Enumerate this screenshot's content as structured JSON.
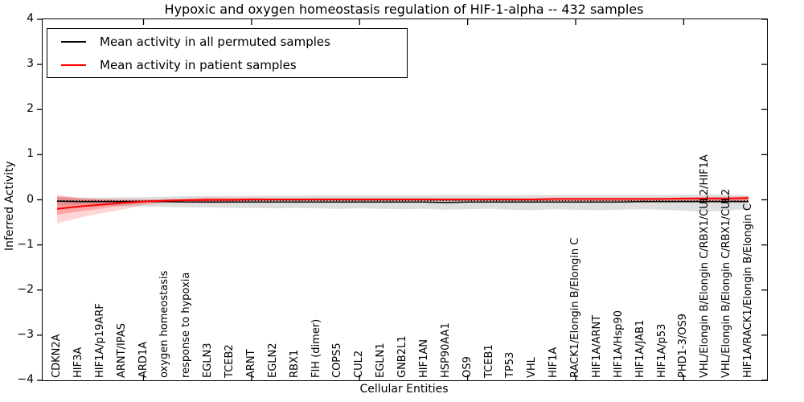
{
  "chart_data": {
    "type": "line",
    "title": "Hypoxic and oxygen homeostasis regulation of HIF-1-alpha -- 432 samples",
    "xlabel": "Cellular Entities",
    "ylabel": "Inferred Activity",
    "ylim": [
      -4,
      4
    ],
    "yticks": [
      4,
      3,
      2,
      1,
      0,
      -1,
      -2,
      -3,
      -4
    ],
    "ytick_labels": [
      "4",
      "3",
      "2",
      "1",
      "0",
      "−1",
      "−2",
      "−3",
      "−4"
    ],
    "xtick_major_positions": [
      5,
      10,
      15,
      20,
      25,
      30
    ],
    "grid": false,
    "legend_position": "upper left",
    "categories": [
      "CDKN2A",
      "HIF3A",
      "HIF1A/p19ARF",
      "ARNT/IPAS",
      "ARD1A",
      "oxygen homeostasis",
      "response to hypoxia",
      "EGLN3",
      "TCEB2",
      "ARNT",
      "EGLN2",
      "RBX1",
      "FIH (dimer)",
      "COPS5",
      "CUL2",
      "EGLN1",
      "GNB2L1",
      "HIF1AN",
      "HSP90AA1",
      "OS9",
      "TCEB1",
      "TP53",
      "VHL",
      "HIF1A",
      "RACK1/Elongin B/Elongin C",
      "HIF1A/ARNT",
      "HIF1A/Hsp90",
      "HIF1A/JAB1",
      "HIF1A/p53",
      "PHD1-3/OS9",
      "VHL/Elongin B/Elongin C/RBX1/CUL2/HIF1A",
      "VHL/Elongin B/Elongin C/RBX1/CUL2",
      "HIF1A/RACK1/Elongin B/Elongin C"
    ],
    "series": [
      {
        "name": "Mean activity in all permuted samples",
        "color": "#000000",
        "line_width": 1.4,
        "values": [
          -0.03,
          -0.04,
          -0.04,
          -0.04,
          -0.04,
          -0.04,
          -0.05,
          -0.05,
          -0.05,
          -0.05,
          -0.05,
          -0.05,
          -0.05,
          -0.05,
          -0.05,
          -0.05,
          -0.05,
          -0.05,
          -0.06,
          -0.05,
          -0.05,
          -0.05,
          -0.05,
          -0.05,
          -0.05,
          -0.05,
          -0.05,
          -0.04,
          -0.04,
          -0.04,
          -0.04,
          -0.04,
          -0.04
        ]
      },
      {
        "name": "Mean activity in patient samples",
        "color": "#ff0000",
        "line_width": 2,
        "values": [
          -0.2,
          -0.15,
          -0.11,
          -0.07,
          -0.04,
          -0.02,
          -0.01,
          0.0,
          0.0,
          0.01,
          0.01,
          0.01,
          0.01,
          0.01,
          0.01,
          0.01,
          0.01,
          0.01,
          0.01,
          0.01,
          0.01,
          0.01,
          0.01,
          0.02,
          0.02,
          0.02,
          0.02,
          0.02,
          0.02,
          0.03,
          0.03,
          0.03,
          0.04
        ]
      }
    ],
    "bands": [
      {
        "name": "permuted-samples-std",
        "color": "rgba(0,0,0,0.13)",
        "upper": [
          0.06,
          0.05,
          0.05,
          0.06,
          0.06,
          0.07,
          0.08,
          0.08,
          0.08,
          0.09,
          0.09,
          0.09,
          0.1,
          0.1,
          0.1,
          0.1,
          0.1,
          0.1,
          0.11,
          0.11,
          0.1,
          0.1,
          0.11,
          0.1,
          0.1,
          0.1,
          0.1,
          0.1,
          0.11,
          0.11,
          0.12,
          0.11,
          0.1
        ],
        "lower": [
          -0.13,
          -0.12,
          -0.13,
          -0.14,
          -0.15,
          -0.16,
          -0.17,
          -0.17,
          -0.18,
          -0.18,
          -0.19,
          -0.18,
          -0.19,
          -0.2,
          -0.19,
          -0.2,
          -0.21,
          -0.2,
          -0.22,
          -0.21,
          -0.2,
          -0.22,
          -0.23,
          -0.21,
          -0.22,
          -0.23,
          -0.22,
          -0.21,
          -0.22,
          -0.24,
          -0.26,
          -0.24,
          -0.2
        ]
      },
      {
        "name": "patient-samples-std-outer",
        "color": "rgba(255,0,0,0.16)",
        "upper": [
          0.11,
          0.05,
          0.02,
          0.01,
          0.01,
          0.02,
          0.03,
          0.05,
          0.04,
          0.04,
          0.03,
          0.03,
          0.03,
          0.03,
          0.03,
          0.03,
          0.03,
          0.03,
          0.03,
          0.03,
          0.03,
          0.03,
          0.03,
          0.04,
          0.04,
          0.04,
          0.04,
          0.04,
          0.04,
          0.05,
          0.07,
          0.07,
          0.08
        ],
        "lower": [
          -0.52,
          -0.4,
          -0.3,
          -0.22,
          -0.12,
          -0.07,
          -0.06,
          -0.08,
          -0.07,
          -0.05,
          -0.04,
          -0.04,
          -0.04,
          -0.04,
          -0.04,
          -0.04,
          -0.04,
          -0.04,
          -0.04,
          -0.04,
          -0.04,
          -0.04,
          -0.04,
          -0.04,
          -0.04,
          -0.04,
          -0.04,
          -0.04,
          -0.04,
          -0.04,
          -0.05,
          -0.05,
          -0.04
        ]
      },
      {
        "name": "patient-samples-std-inner",
        "color": "rgba(255,0,0,0.22)",
        "upper": [
          0.08,
          0.03,
          0.01,
          0.0,
          0.0,
          0.01,
          0.02,
          0.03,
          0.03,
          0.02,
          0.02,
          0.02,
          0.02,
          0.02,
          0.02,
          0.02,
          0.02,
          0.02,
          0.02,
          0.02,
          0.02,
          0.02,
          0.02,
          0.03,
          0.03,
          0.03,
          0.03,
          0.03,
          0.03,
          0.04,
          0.05,
          0.05,
          0.06
        ],
        "lower": [
          -0.33,
          -0.26,
          -0.2,
          -0.13,
          -0.08,
          -0.04,
          -0.03,
          -0.05,
          -0.04,
          -0.03,
          -0.02,
          -0.02,
          -0.02,
          -0.02,
          -0.02,
          -0.02,
          -0.02,
          -0.02,
          -0.02,
          -0.02,
          -0.02,
          -0.02,
          -0.02,
          -0.02,
          -0.02,
          -0.02,
          -0.02,
          -0.02,
          -0.02,
          -0.02,
          -0.03,
          -0.03,
          -0.02
        ]
      }
    ],
    "zero_line": {
      "style": "dotted",
      "value": -0.02,
      "color": "#000000"
    }
  }
}
